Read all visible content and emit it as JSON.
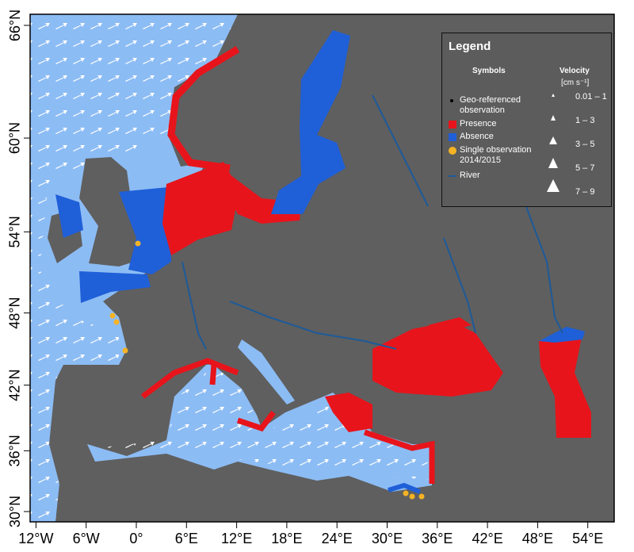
{
  "map": {
    "x_axis": {
      "ticks": [
        {
          "value": -12,
          "label": "12°W"
        },
        {
          "value": -6,
          "label": "6°W"
        },
        {
          "value": 0,
          "label": "0°"
        },
        {
          "value": 6,
          "label": "6°E"
        },
        {
          "value": 12,
          "label": "12°E"
        },
        {
          "value": 18,
          "label": "18°E"
        },
        {
          "value": 24,
          "label": "24°E"
        },
        {
          "value": 30,
          "label": "30°E"
        },
        {
          "value": 36,
          "label": "36°E"
        },
        {
          "value": 42,
          "label": "42°E"
        },
        {
          "value": 48,
          "label": "48°E"
        },
        {
          "value": 54,
          "label": "54°E"
        }
      ]
    },
    "y_axis": {
      "ticks": [
        {
          "value": 30,
          "label": "30°N"
        },
        {
          "value": 36,
          "label": "36°N"
        },
        {
          "value": 42,
          "label": "42°N"
        },
        {
          "value": 48,
          "label": "48°N"
        },
        {
          "value": 54,
          "label": "54°N"
        },
        {
          "value": 60,
          "label": "60°N"
        },
        {
          "value": 66,
          "label": "66°N"
        }
      ]
    }
  },
  "legend": {
    "title": "Legend",
    "symbols_heading": "Symbols",
    "velocity_heading": "Velocity",
    "velocity_unit": "[cm s⁻¹]",
    "items": [
      "Geo-referenced observation",
      "Presence",
      "Absence",
      "Single observation 2014/2015",
      "River"
    ],
    "velocity_classes": [
      "0.01 – 1",
      "1 – 3",
      "3 – 5",
      "5 – 7",
      "7 – 9"
    ]
  }
}
